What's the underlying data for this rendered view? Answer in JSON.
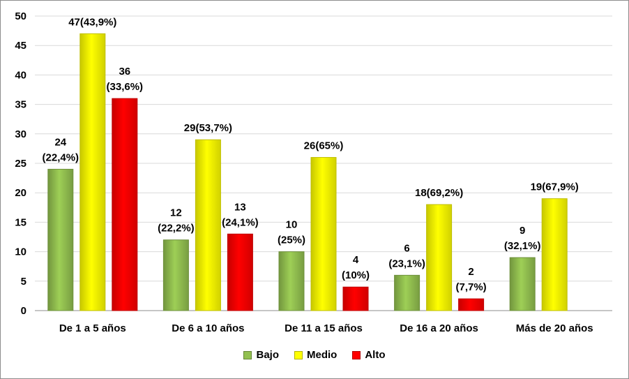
{
  "chart_data": {
    "type": "bar",
    "title": "",
    "xlabel": "",
    "ylabel": "",
    "ylim": [
      0,
      50
    ],
    "yticks": [
      0,
      5,
      10,
      15,
      20,
      25,
      30,
      35,
      40,
      45,
      50
    ],
    "categories": [
      "De 1 a 5 años",
      "De 6 a 10 años",
      "De 11 a 15 años",
      "De 16 a 20 años",
      "Más de 20 años"
    ],
    "series": [
      {
        "name": "Bajo",
        "color": "#92c050",
        "values": [
          24,
          12,
          10,
          6,
          9
        ],
        "labels": [
          [
            "24",
            "(22,4%)"
          ],
          [
            "12",
            "(22,2%)"
          ],
          [
            "10",
            "(25%)"
          ],
          [
            "6",
            "(23,1%)"
          ],
          [
            "9",
            "(32,1%)"
          ]
        ]
      },
      {
        "name": "Medio",
        "color": "#ffff00",
        "values": [
          47,
          29,
          26,
          18,
          19
        ],
        "labels": [
          [
            "47(43,9%)"
          ],
          [
            "29(53,7%)"
          ],
          [
            "26(65%)"
          ],
          [
            "18(69,2%)"
          ],
          [
            "19(67,9%)"
          ]
        ]
      },
      {
        "name": "Alto",
        "color": "#ff0000",
        "values": [
          36,
          13,
          4,
          2,
          null
        ],
        "labels": [
          [
            "36",
            "(33,6%)"
          ],
          [
            "13",
            "(24,1%)"
          ],
          [
            "4",
            "(10%)"
          ],
          [
            "2",
            "(7,7%)"
          ],
          null
        ]
      }
    ],
    "grid": true,
    "legend_position": "bottom"
  }
}
